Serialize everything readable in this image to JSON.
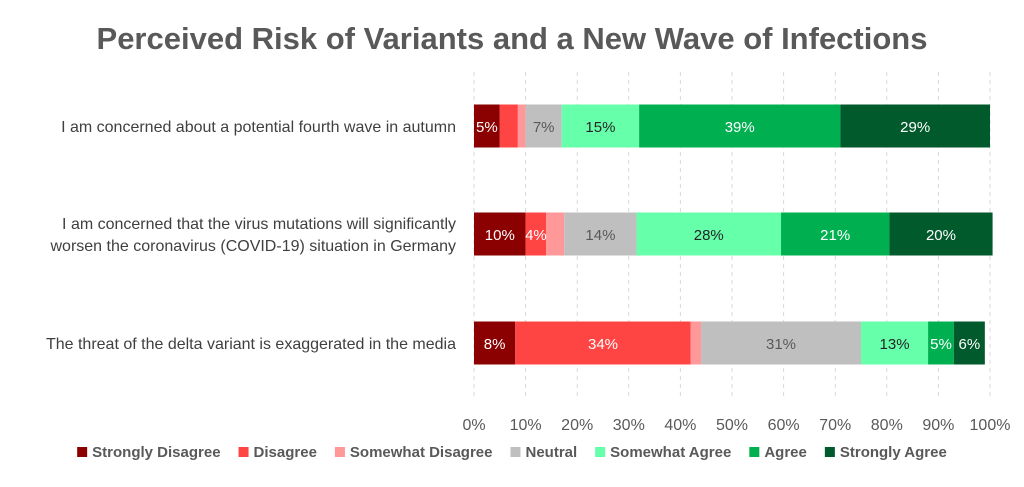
{
  "chart_data": {
    "type": "bar",
    "orientation": "horizontal",
    "stacked": true,
    "title": "Perceived Risk of Variants and a New Wave of Infections",
    "categories": [
      [
        "I am concerned about a potential fourth wave in autumn"
      ],
      [
        "I am concerned that the virus mutations will significantly",
        "worsen the coronavirus (COVID-19) situation in Germany"
      ],
      [
        "The threat of the delta variant is exaggerated in the media"
      ]
    ],
    "series": [
      {
        "name": "Strongly Disagree",
        "color": "#8b0000",
        "label_color": "#ffffff",
        "values": [
          5,
          10,
          8
        ],
        "labels": [
          "5%",
          "10%",
          "8%"
        ]
      },
      {
        "name": "Disagree",
        "color": "#ff4444",
        "label_color": "#ffffff",
        "values": [
          3.5,
          4,
          34
        ],
        "labels": [
          "",
          "4%",
          "34%"
        ]
      },
      {
        "name": "Somewhat Disagree",
        "color": "#ff9999",
        "label_color": "#ffffff",
        "values": [
          1.5,
          3.5,
          2
        ],
        "labels": [
          "",
          "",
          ""
        ]
      },
      {
        "name": "Neutral",
        "color": "#bfbfbf",
        "label_color": "#595959",
        "values": [
          7,
          14,
          31
        ],
        "labels": [
          "7%",
          "14%",
          "31%"
        ]
      },
      {
        "name": "Somewhat Agree",
        "color": "#66ffaa",
        "label_color": "#262626",
        "values": [
          15,
          28,
          13
        ],
        "labels": [
          "15%",
          "28%",
          "13%"
        ]
      },
      {
        "name": "Agree",
        "color": "#00b050",
        "label_color": "#ffffff",
        "values": [
          39,
          21,
          5
        ],
        "labels": [
          "39%",
          "21%",
          "5%"
        ]
      },
      {
        "name": "Strongly Agree",
        "color": "#005a2b",
        "label_color": "#ffffff",
        "values": [
          29,
          20,
          6
        ],
        "labels": [
          "29%",
          "20%",
          "6%"
        ]
      }
    ],
    "xlim": [
      0,
      100
    ],
    "xticks": [
      0,
      10,
      20,
      30,
      40,
      50,
      60,
      70,
      80,
      90,
      100
    ],
    "xtick_labels": [
      "0%",
      "10%",
      "20%",
      "30%",
      "40%",
      "50%",
      "60%",
      "70%",
      "80%",
      "90%",
      "100%"
    ],
    "grid": true,
    "legend_position": "bottom"
  }
}
